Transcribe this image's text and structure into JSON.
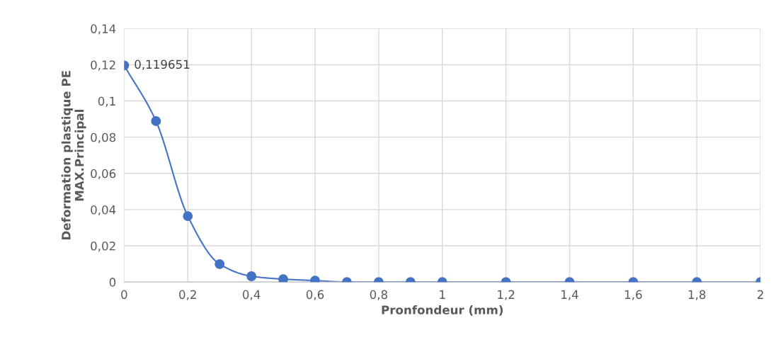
{
  "chart_data": {
    "type": "line",
    "xlabel": "Pronfondeur (mm)",
    "ylabel": "Deformation plastique PE\nMAX.Principal",
    "x": [
      0,
      0.1,
      0.2,
      0.3,
      0.4,
      0.5,
      0.6,
      0.7,
      0.8,
      0.9,
      1,
      1.2,
      1.4,
      1.6,
      1.8,
      2
    ],
    "series": [
      {
        "color": "#4472c4",
        "values": [
          0.119651,
          0.0889,
          0.0364,
          0.0099,
          0.0032,
          0.0016,
          0.0008,
          0,
          0,
          0,
          0,
          0,
          0,
          0,
          0,
          0
        ],
        "value_labels": [
          "0,119651",
          null,
          null,
          null,
          null,
          null,
          null,
          null,
          null,
          null,
          null,
          null,
          null,
          null,
          null,
          null
        ]
      }
    ],
    "xlim": [
      0,
      2
    ],
    "ylim": [
      0,
      0.14
    ],
    "xticks": [
      0,
      {
        "value": 0.2,
        "label": "0,2"
      },
      {
        "value": 0.4,
        "label": "0,4"
      },
      {
        "value": 0.6,
        "label": "0,6"
      },
      {
        "value": 0.8,
        "label": "0,8"
      },
      1,
      {
        "value": 1.2,
        "label": "1,2"
      },
      {
        "value": 1.4,
        "label": "1,4"
      },
      {
        "value": 1.6,
        "label": "1,6"
      },
      {
        "value": 1.8,
        "label": "1,8"
      },
      2
    ],
    "yticks": [
      0,
      {
        "value": 0.02,
        "label": "0,02"
      },
      {
        "value": 0.04,
        "label": "0,04"
      },
      {
        "value": 0.06,
        "label": "0,06"
      },
      {
        "value": 0.08,
        "label": "0,08"
      },
      {
        "value": 0.1,
        "label": "0,1"
      },
      {
        "value": 0.12,
        "label": "0,12"
      },
      {
        "value": 0.14,
        "label": "0,14"
      }
    ],
    "grid": true,
    "marker": "circle",
    "line_style": "solid"
  }
}
